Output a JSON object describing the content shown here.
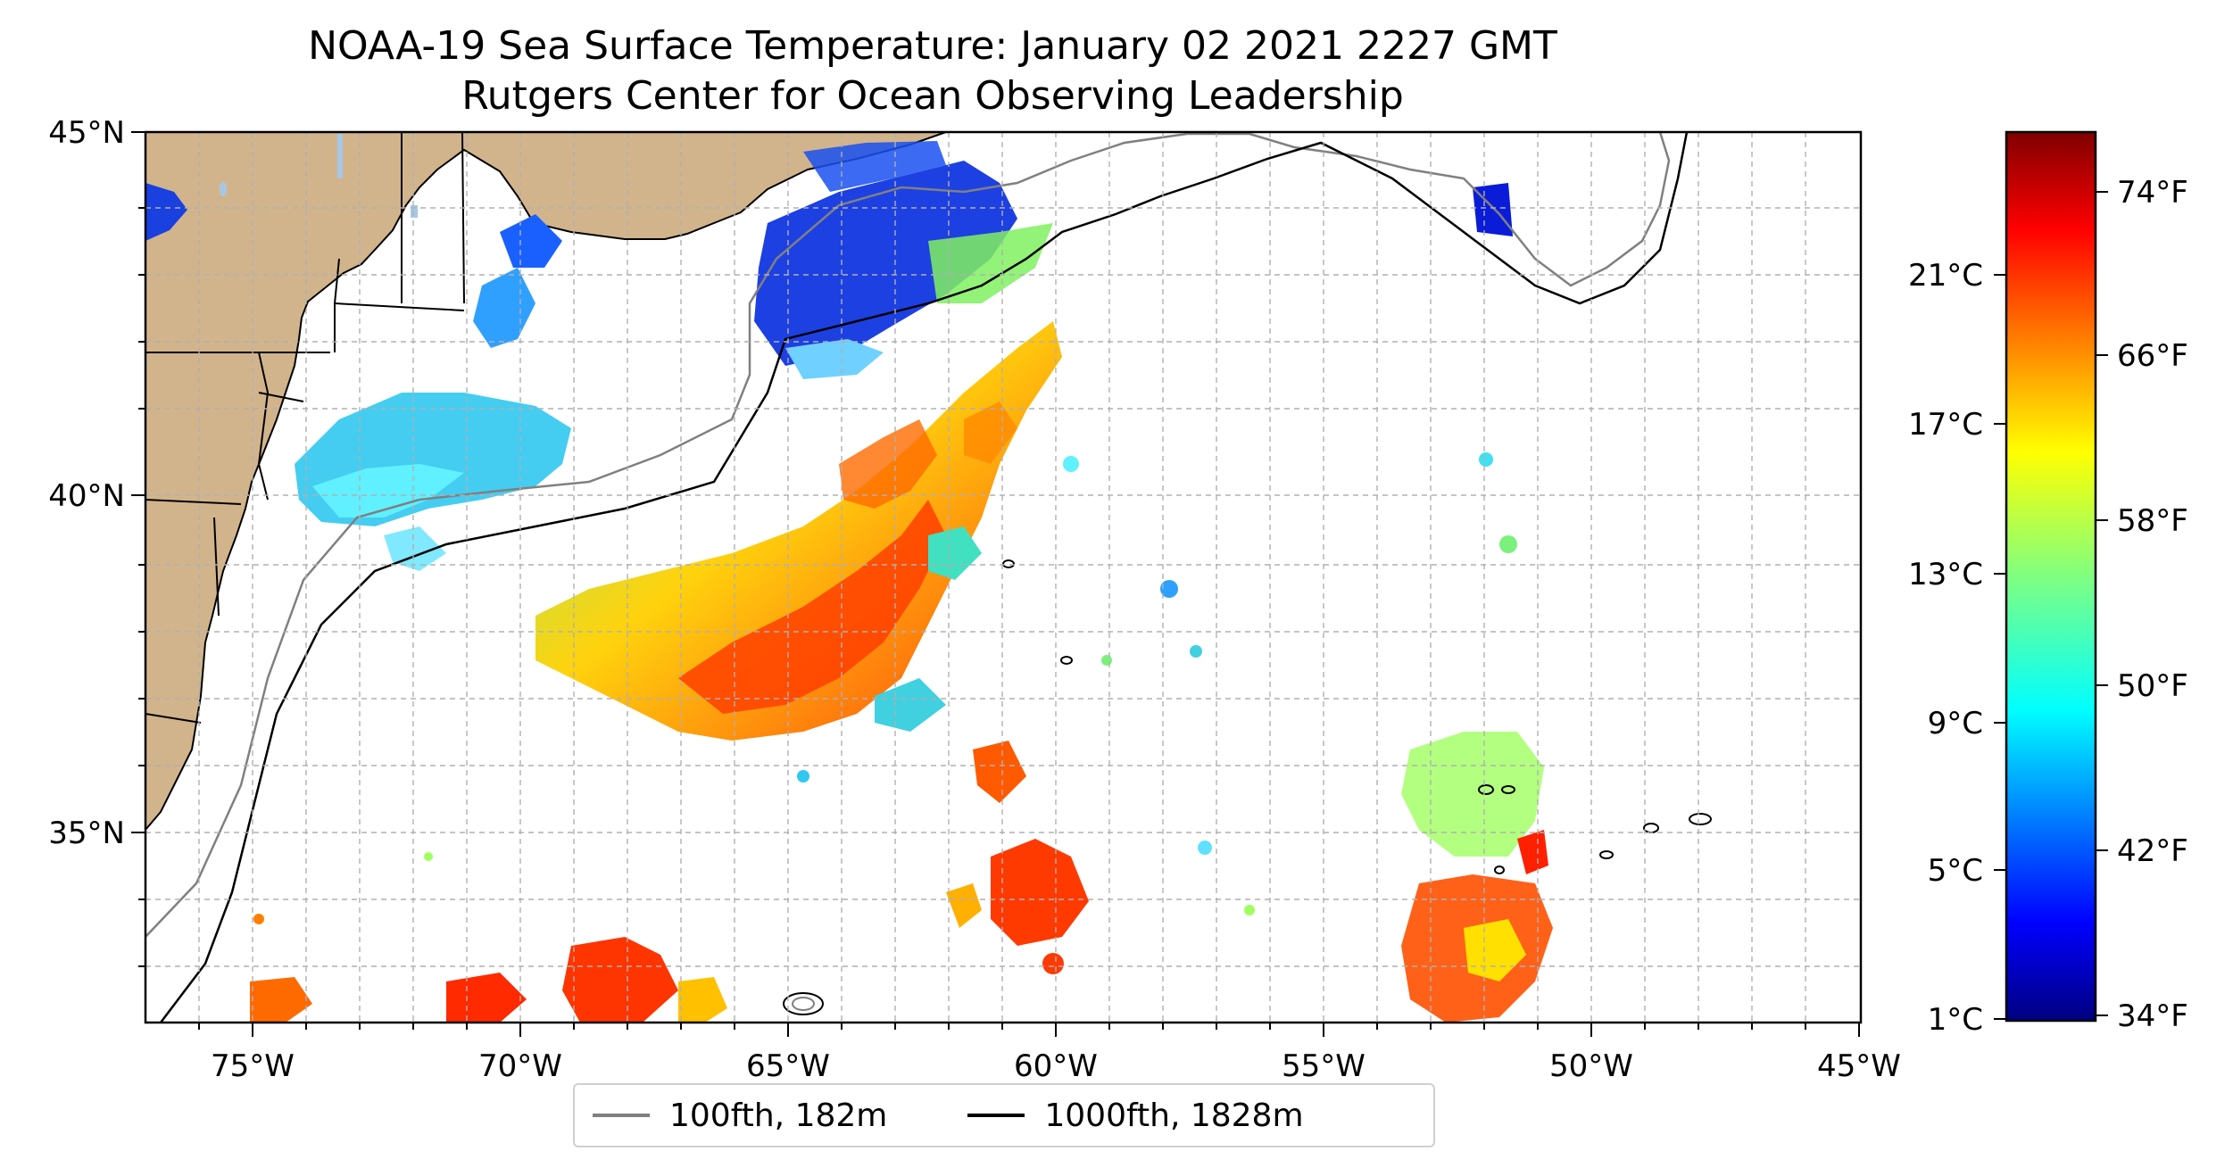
{
  "title": "NOAA-19 Sea Surface Temperature: January 02 2021 2227 GMT",
  "subtitle": "Rutgers Center for Ocean Observing Leadership",
  "map": {
    "lon_range": [
      -77,
      -45
    ],
    "lat_range": [
      32.5,
      45
    ],
    "lon_ticks": [
      "75°W",
      "70°W",
      "65°W",
      "60°W",
      "55°W",
      "50°W",
      "45°W"
    ],
    "lat_ticks": [
      "45°N",
      "40°N",
      "35°N"
    ],
    "land_color": "#d2b48c",
    "lake_color": "#a6c8e8",
    "gridlines": true
  },
  "legend": {
    "items": [
      {
        "label": "100fth, 182m",
        "color": "#808080"
      },
      {
        "label": "1000fth, 1828m",
        "color": "#000000"
      }
    ],
    "placement": "bottom-center"
  },
  "colorbar": {
    "colormap": "jet",
    "celsius_ticks": [
      "21°C",
      "17°C",
      "13°C",
      "9°C",
      "5°C",
      "1°C"
    ],
    "fahrenheit_ticks": [
      "74°F",
      "66°F",
      "58°F",
      "50°F",
      "42°F",
      "34°F"
    ],
    "range_f": [
      33,
      77
    ]
  }
}
